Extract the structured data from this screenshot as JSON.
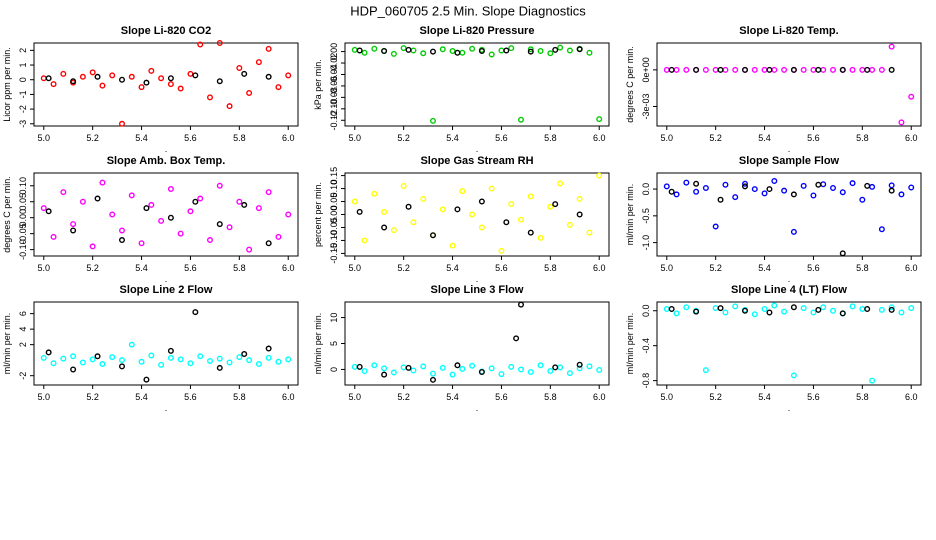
{
  "title": "HDP_060705  2.5 Min. Slope Diagnostics",
  "chart_data": [
    {
      "type": "scatter",
      "title": "Slope Li-820 CO2",
      "y_label": "Licor ppm per min.",
      "x_label": ".",
      "xlim": [
        4.96,
        6.04
      ],
      "xticks": [
        {
          "value": 5.0,
          "label": "5.0"
        },
        5.2,
        5.4,
        5.6,
        5.8,
        {
          "value": 6.0,
          "label": "6.0"
        }
      ],
      "ylim": [
        -3.15,
        2.5
      ],
      "yticks": [
        -3,
        -2,
        -1,
        0,
        1,
        2
      ],
      "series": [
        {
          "color": "#ff0000",
          "x": [
            5,
            5.04,
            5.08,
            5.12,
            5.16,
            5.2,
            5.24,
            5.28,
            5.32,
            5.36,
            5.4,
            5.44,
            5.48,
            5.52,
            5.56,
            5.6,
            5.64,
            5.68,
            5.72,
            5.76,
            5.8,
            5.84,
            5.88,
            5.92,
            5.96,
            6
          ],
          "values": [
            0.1,
            -0.3,
            0.4,
            -0.2,
            0.2,
            0.5,
            -0.4,
            0.3,
            -3.0,
            0.2,
            -0.5,
            0.6,
            0.1,
            -0.3,
            -0.6,
            0.4,
            2.4,
            -1.2,
            2.5,
            -1.8,
            0.8,
            -0.9,
            1.2,
            2.1,
            -0.5,
            0.3
          ]
        },
        {
          "color": "#000000",
          "x": [
            5.02,
            5.12,
            5.22,
            5.32,
            5.42,
            5.52,
            5.62,
            5.72,
            5.82,
            5.92
          ],
          "values": [
            0.1,
            -0.1,
            0.2,
            0.0,
            -0.2,
            0.1,
            0.3,
            -0.1,
            0.4,
            0.2
          ]
        }
      ]
    },
    {
      "type": "scatter",
      "title": "Slope Li-820 Pressure",
      "y_label": "kPa per min.",
      "x_label": ".",
      "xlim": [
        4.96,
        6.04
      ],
      "xticks": [
        {
          "value": 5.0,
          "label": "5.0"
        },
        5.2,
        5.4,
        5.6,
        5.8,
        {
          "value": 6.0,
          "label": "6.0"
        }
      ],
      "ylim": [
        -0.13,
        0.015
      ],
      "yticks": [
        {
          "value": -0.12,
          "label": "-0.12"
        },
        {
          "value": -0.1,
          "label": "-0.10"
        },
        {
          "value": -0.08,
          "label": "-0.08"
        },
        {
          "value": -0.06,
          "label": "-0.06"
        },
        {
          "value": -0.04,
          "label": "-0.04"
        },
        {
          "value": -0.02,
          "label": "-0.02"
        },
        {
          "value": 0,
          "label": "0.00"
        }
      ],
      "series": [
        {
          "color": "#00cc00",
          "x": [
            5,
            5.04,
            5.08,
            5.12,
            5.16,
            5.2,
            5.24,
            5.28,
            5.32,
            5.36,
            5.4,
            5.44,
            5.48,
            5.52,
            5.56,
            5.6,
            5.64,
            5.68,
            5.72,
            5.76,
            5.8,
            5.84,
            5.88,
            5.92,
            5.96,
            6
          ],
          "values": [
            0.003,
            -0.002,
            0.005,
            0.001,
            -0.004,
            0.006,
            0.002,
            -0.003,
            -0.121,
            0.004,
            0.001,
            -0.002,
            0.005,
            0.003,
            -0.005,
            0.002,
            0.006,
            -0.119,
            0.004,
            0.001,
            -0.003,
            0.007,
            0.002,
            0.005,
            -0.002,
            -0.118
          ]
        },
        {
          "color": "#000000",
          "x": [
            5.02,
            5.12,
            5.22,
            5.32,
            5.42,
            5.52,
            5.62,
            5.72,
            5.82,
            5.92
          ],
          "values": [
            0.002,
            0.001,
            0.003,
            0.0,
            -0.002,
            0.001,
            0.002,
            0.0,
            0.003,
            0.004
          ]
        }
      ]
    },
    {
      "type": "scatter",
      "title": "Slope Li-820 Temp.",
      "y_label": "degrees C per min.",
      "x_label": ".",
      "xlim": [
        4.96,
        6.04
      ],
      "xticks": [
        {
          "value": 5.0,
          "label": "5.0"
        },
        5.2,
        5.4,
        5.6,
        5.8,
        {
          "value": 6.0,
          "label": "6.0"
        }
      ],
      "ylim": [
        -0.0046,
        0.0022
      ],
      "yticks": [
        {
          "value": -0.003,
          "label": "-3e-03"
        },
        {
          "value": 0,
          "label": "0e+00"
        }
      ],
      "series": [
        {
          "color": "#ff00ff",
          "x": [
            5,
            5.04,
            5.08,
            5.12,
            5.16,
            5.2,
            5.24,
            5.28,
            5.32,
            5.36,
            5.4,
            5.44,
            5.48,
            5.52,
            5.56,
            5.6,
            5.64,
            5.68,
            5.72,
            5.76,
            5.8,
            5.84,
            5.88,
            5.92,
            5.96,
            6
          ],
          "values": [
            0,
            0,
            0,
            0,
            0,
            0,
            0,
            0,
            0,
            0,
            0,
            0,
            0,
            0,
            0,
            0,
            0,
            0,
            0,
            0,
            0,
            0,
            0,
            0.0019,
            -0.0043,
            -0.0022
          ]
        },
        {
          "color": "#000000",
          "x": [
            5.02,
            5.12,
            5.22,
            5.32,
            5.42,
            5.52,
            5.62,
            5.72,
            5.82,
            5.92
          ],
          "values": [
            0,
            0,
            0,
            0,
            0,
            0,
            0,
            0,
            0,
            0
          ]
        }
      ]
    },
    {
      "type": "scatter",
      "title": "Slope Amb. Box Temp.",
      "y_label": "degrees C per min.",
      "x_label": ".",
      "xlim": [
        4.96,
        6.04
      ],
      "xticks": [
        {
          "value": 5.0,
          "label": "5.0"
        },
        5.2,
        5.4,
        5.6,
        5.8,
        {
          "value": 6.0,
          "label": "6.0"
        }
      ],
      "ylim": [
        -0.12,
        0.14
      ],
      "yticks": [
        {
          "value": -0.1,
          "label": "-0.10"
        },
        {
          "value": -0.05,
          "label": "-0.05"
        },
        {
          "value": 0,
          "label": "0.00"
        },
        0.05,
        {
          "value": 0.1,
          "label": "0.10"
        }
      ],
      "series": [
        {
          "color": "#ff00ff",
          "x": [
            5,
            5.04,
            5.08,
            5.12,
            5.16,
            5.2,
            5.24,
            5.28,
            5.32,
            5.36,
            5.4,
            5.44,
            5.48,
            5.52,
            5.56,
            5.6,
            5.64,
            5.68,
            5.72,
            5.76,
            5.8,
            5.84,
            5.88,
            5.92,
            5.96,
            6
          ],
          "values": [
            0.03,
            -0.06,
            0.08,
            -0.02,
            0.05,
            -0.09,
            0.11,
            0.01,
            -0.04,
            0.07,
            -0.08,
            0.04,
            -0.01,
            0.09,
            -0.05,
            0.02,
            0.06,
            -0.07,
            0.1,
            -0.03,
            0.05,
            -0.1,
            0.03,
            0.08,
            -0.06,
            0.01
          ]
        },
        {
          "color": "#000000",
          "x": [
            5.02,
            5.12,
            5.22,
            5.32,
            5.42,
            5.52,
            5.62,
            5.72,
            5.82,
            5.92
          ],
          "values": [
            0.02,
            -0.04,
            0.06,
            -0.07,
            0.03,
            0.0,
            0.05,
            -0.02,
            0.04,
            -0.08
          ]
        }
      ]
    },
    {
      "type": "scatter",
      "title": "Slope Gas Stream RH",
      "y_label": "percent per min.",
      "x_label": ".",
      "xlim": [
        4.96,
        6.04
      ],
      "xticks": [
        {
          "value": 5.0,
          "label": "5.0"
        },
        5.2,
        5.4,
        5.6,
        5.8,
        {
          "value": 6.0,
          "label": "6.0"
        }
      ],
      "ylim": [
        -0.16,
        0.16
      ],
      "yticks": [
        -0.15,
        {
          "value": -0.1,
          "label": "-0.10"
        },
        -0.05,
        {
          "value": 0,
          "label": "0.00"
        },
        0.05,
        {
          "value": 0.1,
          "label": "0.10"
        },
        0.15
      ],
      "series": [
        {
          "color": "#ffff00",
          "x": [
            5,
            5.04,
            5.08,
            5.12,
            5.16,
            5.2,
            5.24,
            5.28,
            5.32,
            5.36,
            5.4,
            5.44,
            5.48,
            5.52,
            5.56,
            5.6,
            5.64,
            5.68,
            5.72,
            5.76,
            5.8,
            5.84,
            5.88,
            5.92,
            5.96,
            6
          ],
          "values": [
            0.05,
            -0.1,
            0.08,
            0.01,
            -0.06,
            0.11,
            -0.03,
            0.06,
            -0.08,
            0.02,
            -0.12,
            0.09,
            0.0,
            -0.05,
            0.1,
            -0.14,
            0.04,
            -0.02,
            0.07,
            -0.09,
            0.03,
            0.12,
            -0.04,
            0.06,
            -0.07,
            0.15
          ]
        },
        {
          "color": "#000000",
          "x": [
            5.02,
            5.12,
            5.22,
            5.32,
            5.42,
            5.52,
            5.62,
            5.72,
            5.82,
            5.92
          ],
          "values": [
            0.01,
            -0.05,
            0.03,
            -0.08,
            0.02,
            0.05,
            -0.03,
            -0.07,
            0.04,
            0.0
          ]
        }
      ]
    },
    {
      "type": "scatter",
      "title": "Slope Sample Flow",
      "y_label": "ml/min per min.",
      "x_label": ".",
      "xlim": [
        4.96,
        6.04
      ],
      "xticks": [
        {
          "value": 5.0,
          "label": "5.0"
        },
        5.2,
        5.4,
        5.6,
        5.8,
        {
          "value": 6.0,
          "label": "6.0"
        }
      ],
      "ylim": [
        -1.25,
        0.3
      ],
      "yticks": [
        {
          "value": -1,
          "label": "-1.0"
        },
        -0.5,
        {
          "value": 0,
          "label": "0.0"
        }
      ],
      "series": [
        {
          "color": "#0000ff",
          "x": [
            5,
            5.04,
            5.08,
            5.12,
            5.16,
            5.2,
            5.24,
            5.28,
            5.32,
            5.36,
            5.4,
            5.44,
            5.48,
            5.52,
            5.56,
            5.6,
            5.64,
            5.68,
            5.72,
            5.76,
            5.8,
            5.84,
            5.88,
            5.92,
            5.96,
            6
          ],
          "values": [
            0.05,
            -0.1,
            0.12,
            -0.05,
            0.02,
            -0.7,
            0.08,
            -0.15,
            0.1,
            0.0,
            -0.08,
            0.15,
            -0.03,
            -0.8,
            0.06,
            -0.12,
            0.09,
            0.02,
            -0.06,
            0.11,
            -0.2,
            0.04,
            -0.75,
            0.07,
            -0.1,
            0.03
          ]
        },
        {
          "color": "#000000",
          "x": [
            5.02,
            5.12,
            5.22,
            5.32,
            5.42,
            5.52,
            5.62,
            5.72,
            5.82,
            5.92
          ],
          "values": [
            -0.05,
            0.1,
            -0.2,
            0.05,
            0.0,
            -0.1,
            0.08,
            -1.2,
            0.06,
            -0.03
          ]
        }
      ]
    },
    {
      "type": "scatter",
      "title": "Slope Line 2 Flow",
      "y_label": "ml/min per min.",
      "x_label": ".",
      "xlim": [
        4.96,
        6.04
      ],
      "xticks": [
        {
          "value": 5.0,
          "label": "5.0"
        },
        5.2,
        5.4,
        5.6,
        5.8,
        {
          "value": 6.0,
          "label": "6.0"
        }
      ],
      "ylim": [
        -3.2,
        7.5
      ],
      "yticks": [
        -2,
        2,
        4,
        6
      ],
      "series": [
        {
          "color": "#00ffff",
          "x": [
            5,
            5.04,
            5.08,
            5.12,
            5.16,
            5.2,
            5.24,
            5.28,
            5.32,
            5.36,
            5.4,
            5.44,
            5.48,
            5.52,
            5.56,
            5.6,
            5.64,
            5.68,
            5.72,
            5.76,
            5.8,
            5.84,
            5.88,
            5.92,
            5.96,
            6
          ],
          "values": [
            0.3,
            -0.4,
            0.2,
            0.5,
            -0.3,
            0.1,
            -0.5,
            0.4,
            0.0,
            2.0,
            -0.2,
            0.6,
            -0.6,
            0.3,
            0.1,
            -0.4,
            0.5,
            -0.1,
            0.2,
            -0.3,
            0.4,
            0.0,
            -0.5,
            0.3,
            -0.2,
            0.1
          ]
        },
        {
          "color": "#000000",
          "x": [
            5.02,
            5.12,
            5.22,
            5.32,
            5.42,
            5.52,
            5.62,
            5.72,
            5.82,
            5.92
          ],
          "values": [
            1.0,
            -1.2,
            0.5,
            -0.8,
            -2.5,
            1.2,
            6.2,
            -1.0,
            0.8,
            1.5
          ]
        }
      ]
    },
    {
      "type": "scatter",
      "title": "Slope Line 3 Flow",
      "y_label": "ml/min per min.",
      "x_label": ".",
      "xlim": [
        4.96,
        6.04
      ],
      "xticks": [
        {
          "value": 5.0,
          "label": "5.0"
        },
        5.2,
        5.4,
        5.6,
        5.8,
        {
          "value": 6.0,
          "label": "6.0"
        }
      ],
      "ylim": [
        -3,
        13
      ],
      "yticks": [
        0,
        5,
        10
      ],
      "series": [
        {
          "color": "#00ffff",
          "x": [
            5,
            5.04,
            5.08,
            5.12,
            5.16,
            5.2,
            5.24,
            5.28,
            5.32,
            5.36,
            5.4,
            5.44,
            5.48,
            5.52,
            5.56,
            5.6,
            5.64,
            5.68,
            5.72,
            5.76,
            5.8,
            5.84,
            5.88,
            5.92,
            5.96,
            6
          ],
          "values": [
            0.5,
            -0.3,
            0.8,
            0.2,
            -0.6,
            0.4,
            -0.2,
            0.6,
            -0.8,
            0.3,
            -1.0,
            0.1,
            0.7,
            -0.4,
            0.2,
            -0.9,
            0.5,
            0.0,
            -0.5,
            0.8,
            -0.3,
            0.4,
            -0.7,
            0.2,
            0.6,
            -0.1
          ]
        },
        {
          "color": "#000000",
          "x": [
            5.02,
            5.12,
            5.22,
            5.32,
            5.42,
            5.52,
            5.66,
            5.68,
            5.82,
            5.92
          ],
          "values": [
            0.5,
            -1.0,
            0.3,
            -2.0,
            0.8,
            -0.5,
            6.0,
            12.5,
            0.4,
            0.9
          ]
        }
      ]
    },
    {
      "type": "scatter",
      "title": "Slope Line 4 (LT) Flow",
      "y_label": "ml/min per min.",
      "x_label": ".",
      "xlim": [
        4.96,
        6.04
      ],
      "xticks": [
        {
          "value": 5.0,
          "label": "5.0"
        },
        5.2,
        5.4,
        5.6,
        5.8,
        {
          "value": 6.0,
          "label": "6.0"
        }
      ],
      "ylim": [
        -0.85,
        0.1
      ],
      "yticks": [
        {
          "value": -0.8,
          "label": "-0.8"
        },
        {
          "value": -0.4,
          "label": "-0.4"
        },
        {
          "value": 0,
          "label": "0.0"
        }
      ],
      "series": [
        {
          "color": "#00ffff",
          "x": [
            5,
            5.04,
            5.08,
            5.12,
            5.16,
            5.2,
            5.24,
            5.28,
            5.32,
            5.36,
            5.4,
            5.44,
            5.48,
            5.52,
            5.56,
            5.6,
            5.64,
            5.68,
            5.72,
            5.76,
            5.8,
            5.84,
            5.88,
            5.92,
            5.96,
            6
          ],
          "values": [
            0.02,
            -0.03,
            0.04,
            0.0,
            -0.68,
            0.03,
            -0.02,
            0.05,
            0.01,
            -0.04,
            0.02,
            0.06,
            -0.01,
            -0.74,
            0.03,
            -0.02,
            0.04,
            0.0,
            -0.03,
            0.05,
            0.02,
            -0.8,
            0.01,
            0.04,
            -0.02,
            0.03
          ]
        },
        {
          "color": "#000000",
          "x": [
            5.02,
            5.12,
            5.22,
            5.32,
            5.42,
            5.52,
            5.62,
            5.72,
            5.82,
            5.92
          ],
          "values": [
            0.02,
            -0.01,
            0.03,
            0.0,
            -0.02,
            0.04,
            0.01,
            -0.03,
            0.02,
            0.01
          ]
        }
      ]
    }
  ]
}
